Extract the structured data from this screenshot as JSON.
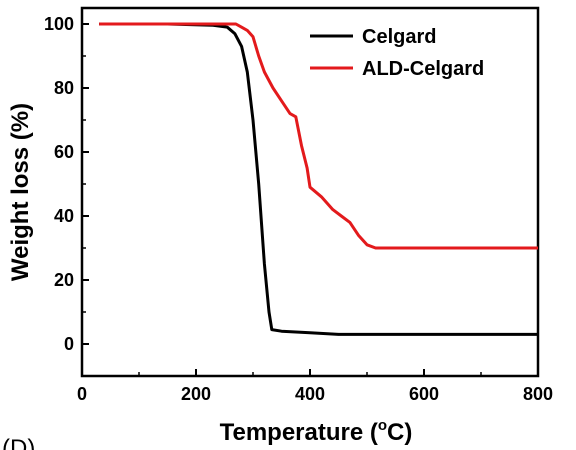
{
  "chart_data": {
    "type": "line",
    "xlabel": "Temperature (",
    "xlabel_degree": "o",
    "xlabel_unit": "C)",
    "ylabel": "Weight loss (%)",
    "xlim": [
      0,
      800
    ],
    "ylim": [
      -10,
      105
    ],
    "x_ticks": [
      0,
      200,
      400,
      600,
      800
    ],
    "y_ticks": [
      0,
      20,
      40,
      60,
      80,
      100
    ],
    "grid": false,
    "legend_position": "top-right",
    "panel_label": "(D)",
    "series": [
      {
        "name": "Celgard",
        "color": "#000000",
        "points": [
          [
            30,
            100
          ],
          [
            150,
            100
          ],
          [
            230,
            99.6
          ],
          [
            255,
            99
          ],
          [
            268,
            97
          ],
          [
            280,
            93
          ],
          [
            290,
            85
          ],
          [
            300,
            70
          ],
          [
            310,
            50
          ],
          [
            320,
            25
          ],
          [
            328,
            10
          ],
          [
            333,
            4.5
          ],
          [
            350,
            4
          ],
          [
            400,
            3.5
          ],
          [
            450,
            3
          ],
          [
            600,
            3
          ],
          [
            800,
            3
          ]
        ]
      },
      {
        "name": "ALD-Celgard",
        "color": "#e31a1c",
        "points": [
          [
            30,
            100
          ],
          [
            240,
            100
          ],
          [
            270,
            100
          ],
          [
            280,
            99
          ],
          [
            290,
            98
          ],
          [
            300,
            96
          ],
          [
            310,
            90
          ],
          [
            320,
            85
          ],
          [
            335,
            80
          ],
          [
            350,
            76
          ],
          [
            365,
            72
          ],
          [
            375,
            71
          ],
          [
            385,
            62
          ],
          [
            395,
            55
          ],
          [
            400,
            49
          ],
          [
            420,
            46
          ],
          [
            440,
            42
          ],
          [
            455,
            40
          ],
          [
            470,
            38
          ],
          [
            485,
            34
          ],
          [
            500,
            31
          ],
          [
            515,
            30
          ],
          [
            600,
            30
          ],
          [
            800,
            30
          ]
        ]
      }
    ]
  }
}
